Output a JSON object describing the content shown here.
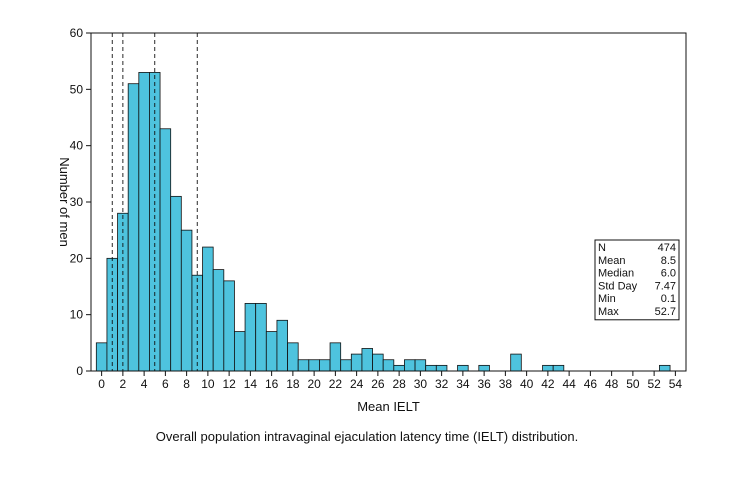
{
  "chart_data": {
    "type": "bar",
    "title": "",
    "xlabel": "Mean IELT",
    "ylabel": "Number of men",
    "xlim": [
      -1,
      55
    ],
    "ylim": [
      0,
      60
    ],
    "bin_width": 1,
    "bin_starts": [
      -0.5,
      0.5,
      1.5,
      2.5,
      3.5,
      4.5,
      5.5,
      6.5,
      7.5,
      8.5,
      9.5,
      10.5,
      11.5,
      12.5,
      13.5,
      14.5,
      15.5,
      16.5,
      17.5,
      18.5,
      19.5,
      20.5,
      21.5,
      22.5,
      23.5,
      24.5,
      25.5,
      26.5,
      27.5,
      28.5,
      29.5,
      30.5,
      31.5,
      33.5,
      35.5,
      38.5,
      41.5,
      42.5,
      52.5
    ],
    "values": [
      5,
      20,
      28,
      51,
      53,
      53,
      43,
      31,
      25,
      17,
      22,
      18,
      16,
      7,
      12,
      12,
      7,
      9,
      5,
      2,
      2,
      2,
      5,
      2,
      3,
      4,
      3,
      2,
      1,
      2,
      2,
      1,
      1,
      1,
      1,
      3,
      1,
      1,
      1
    ],
    "x_ticks": [
      "0",
      "2",
      "4",
      "6",
      "8",
      "10",
      "12",
      "14",
      "16",
      "18",
      "20",
      "22",
      "24",
      "26",
      "28",
      "30",
      "32",
      "34",
      "36",
      "38",
      "40",
      "42",
      "44",
      "46",
      "48",
      "50",
      "52",
      "54"
    ],
    "y_ticks": [
      "0",
      "10",
      "20",
      "30",
      "40",
      "50",
      "60"
    ],
    "reference_lines": [
      1,
      2,
      5,
      9
    ],
    "stats": [
      {
        "label": "N",
        "value": "474"
      },
      {
        "label": "Mean",
        "value": "8.5"
      },
      {
        "label": "Median",
        "value": "6.0"
      },
      {
        "label": "Std Day",
        "value": "7.47"
      },
      {
        "label": "Min",
        "value": "0.1"
      },
      {
        "label": "Max",
        "value": "52.7"
      }
    ],
    "bar_color": "#4ec3de"
  },
  "caption": "Overall population intravaginal ejaculation latency time (IELT) distribution."
}
